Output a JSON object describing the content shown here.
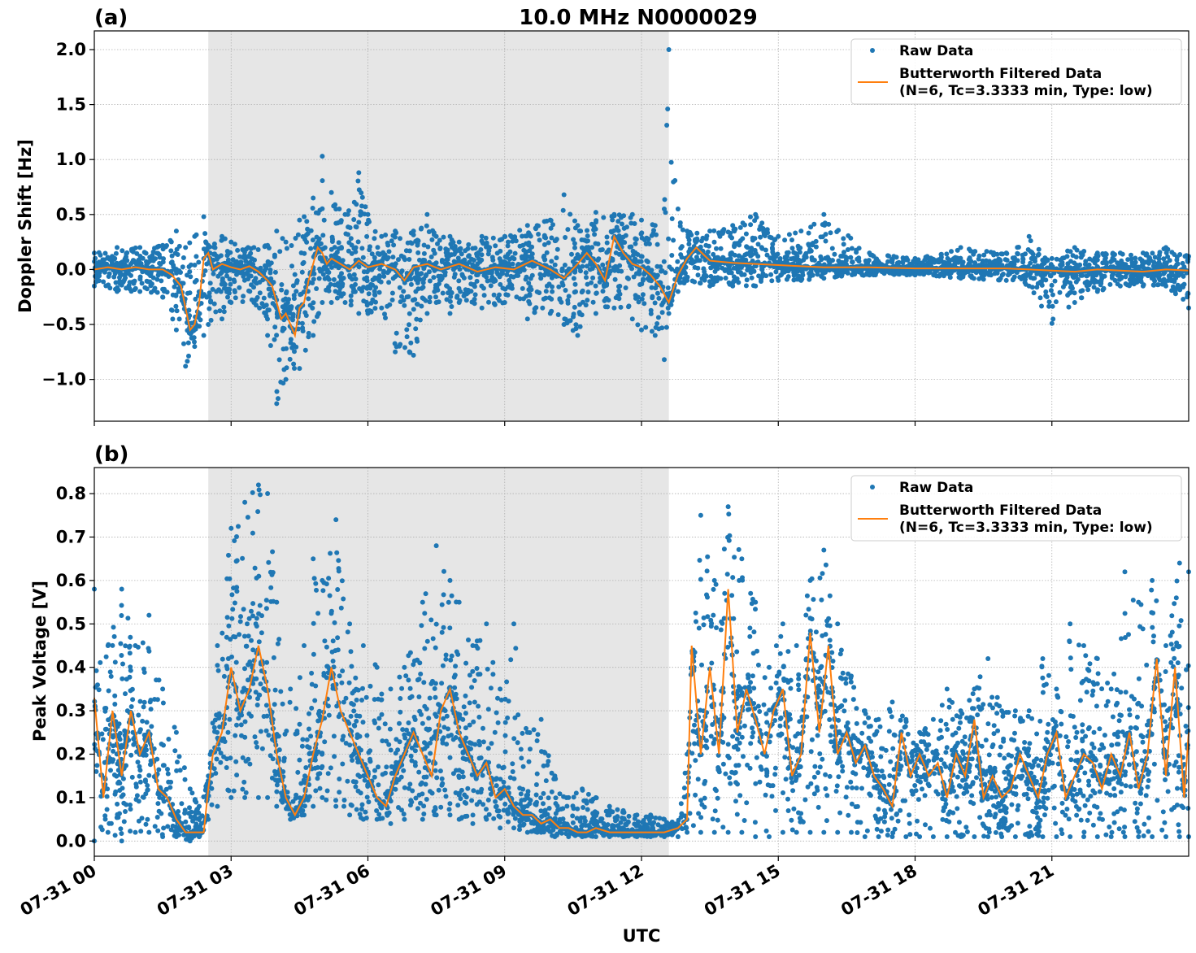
{
  "figure": {
    "title": "10.0 MHz N0000029",
    "xlabel": "UTC",
    "x_ticks": [
      "07-31 00",
      "07-31 03",
      "07-31 06",
      "07-31 09",
      "07-31 12",
      "07-31 15",
      "07-31 18",
      "07-31 21"
    ],
    "legend": {
      "raw": "Raw Data",
      "filtered_line1": "Butterworth Filtered Data",
      "filtered_line2": "(N=6, Tc=3.3333 min, Type: low)"
    },
    "colors": {
      "raw": "#1f77b4",
      "filtered": "#ff7f0e",
      "shade": "#e6e6e6",
      "grid": "#b0b0b0"
    }
  },
  "chart_data": [
    {
      "type": "scatter",
      "panel": "(a)",
      "title": "10.0 MHz N0000029",
      "xlabel": "UTC",
      "ylabel": "Doppler Shift [Hz]",
      "xlim_hours": [
        0,
        24
      ],
      "ylim": [
        -1.38,
        2.17
      ],
      "y_ticks": [
        "2.0",
        "1.5",
        "1.0",
        "0.5",
        "0.0",
        "−0.5",
        "−1.0"
      ],
      "y_tick_values": [
        2.0,
        1.5,
        1.0,
        0.5,
        0.0,
        -0.5,
        -1.0
      ],
      "shaded_interval_hours": [
        2.5,
        12.6
      ],
      "grid": true,
      "legend_position": "upper right",
      "series": [
        {
          "name": "Raw Data",
          "style": "points",
          "x": [
            0,
            0.5,
            1,
            1.5,
            1.8,
            2,
            2.2,
            2.4,
            2.5,
            2.8,
            3,
            3.5,
            3.8,
            4,
            4.2,
            4.5,
            4.8,
            5,
            5.2,
            5.5,
            5.8,
            6,
            6.3,
            6.6,
            7,
            7.3,
            7.5,
            7.8,
            8,
            8.5,
            9,
            9.5,
            10,
            10.3,
            10.6,
            11,
            11.4,
            11.8,
            12,
            12.3,
            12.5,
            12.6,
            12.8,
            13,
            13.5,
            14,
            14.5,
            15,
            15.5,
            16,
            17,
            18,
            19,
            20,
            20.5,
            21,
            21.5,
            22,
            22.5,
            23,
            23.5,
            24
          ],
          "y_upper": [
            0.15,
            0.2,
            0.2,
            0.22,
            0.35,
            0.2,
            0.3,
            0.48,
            0.22,
            0.3,
            0.25,
            0.2,
            0.22,
            0.35,
            0.25,
            0.45,
            0.65,
            1.03,
            0.7,
            0.5,
            0.88,
            0.5,
            0.3,
            0.35,
            0.35,
            0.5,
            0.3,
            0.3,
            0.25,
            0.3,
            0.3,
            0.4,
            0.45,
            0.68,
            0.4,
            0.52,
            0.5,
            0.5,
            0.45,
            0.4,
            0.55,
            2.0,
            0.55,
            0.35,
            0.35,
            0.4,
            0.5,
            0.3,
            0.35,
            0.5,
            0.15,
            0.1,
            0.2,
            0.15,
            0.3,
            0.1,
            0.2,
            0.15,
            0.15,
            0.15,
            0.2,
            0.12
          ],
          "y_lower": [
            -0.15,
            -0.2,
            -0.2,
            -0.25,
            -0.55,
            -0.88,
            -0.7,
            -0.6,
            -0.5,
            -0.45,
            -0.3,
            -0.3,
            -0.6,
            -1.22,
            -1.0,
            -0.9,
            -0.6,
            -0.3,
            -0.3,
            -0.3,
            -0.4,
            -0.4,
            -0.35,
            -0.75,
            -0.78,
            -0.4,
            -0.3,
            -0.4,
            -0.3,
            -0.35,
            -0.3,
            -0.45,
            -0.4,
            -0.5,
            -0.6,
            -0.4,
            -0.35,
            -0.45,
            -0.55,
            -0.6,
            -0.82,
            -0.4,
            -0.2,
            -0.1,
            -0.15,
            -0.15,
            -0.15,
            -0.1,
            -0.1,
            -0.08,
            -0.05,
            -0.05,
            -0.08,
            -0.1,
            -0.15,
            -0.49,
            -0.3,
            -0.2,
            -0.15,
            -0.15,
            -0.15,
            -0.35
          ]
        },
        {
          "name": "Butterworth Filtered Data (N=6, Tc=3.3333 min, Type: low)",
          "style": "line",
          "x": [
            0,
            0.3,
            0.6,
            0.9,
            1.2,
            1.5,
            1.7,
            1.9,
            2.0,
            2.1,
            2.2,
            2.3,
            2.4,
            2.5,
            2.6,
            2.8,
            3.0,
            3.2,
            3.4,
            3.6,
            3.8,
            3.9,
            4.0,
            4.1,
            4.2,
            4.3,
            4.4,
            4.5,
            4.6,
            4.7,
            4.8,
            4.9,
            5.0,
            5.1,
            5.2,
            5.4,
            5.6,
            5.8,
            6.0,
            6.3,
            6.6,
            6.8,
            7.0,
            7.3,
            7.6,
            8.0,
            8.4,
            8.8,
            9.2,
            9.6,
            10.0,
            10.3,
            10.6,
            10.8,
            11.0,
            11.2,
            11.4,
            11.6,
            11.8,
            12.0,
            12.2,
            12.4,
            12.6,
            12.8,
            13.0,
            13.2,
            13.5,
            14,
            14.5,
            15,
            15.5,
            16,
            16.5,
            17,
            18,
            19,
            20,
            20.5,
            21,
            21.5,
            22,
            22.5,
            23,
            23.5,
            24
          ],
          "y": [
            0.0,
            0.02,
            0.0,
            0.02,
            0.0,
            0.0,
            -0.05,
            -0.15,
            -0.35,
            -0.55,
            -0.5,
            -0.3,
            0.1,
            0.15,
            0.0,
            0.05,
            0.02,
            0.0,
            0.03,
            -0.02,
            -0.1,
            -0.15,
            -0.3,
            -0.45,
            -0.4,
            -0.5,
            -0.6,
            -0.35,
            -0.3,
            -0.1,
            0.05,
            0.2,
            0.15,
            0.05,
            0.1,
            0.05,
            0.0,
            0.08,
            0.02,
            0.05,
            0.0,
            -0.1,
            0.02,
            0.05,
            0.0,
            0.05,
            -0.02,
            0.02,
            0.0,
            0.08,
            0.0,
            -0.08,
            0.05,
            0.15,
            0.05,
            -0.1,
            0.3,
            0.15,
            0.05,
            0.02,
            -0.05,
            -0.15,
            -0.3,
            -0.05,
            0.1,
            0.2,
            0.08,
            0.06,
            0.05,
            0.04,
            0.03,
            0.02,
            0.02,
            0.02,
            0.01,
            0.01,
            0.01,
            0.0,
            -0.01,
            -0.02,
            0.0,
            -0.01,
            -0.02,
            0.0,
            -0.01
          ]
        }
      ]
    },
    {
      "type": "scatter",
      "panel": "(b)",
      "xlabel": "UTC",
      "ylabel": "Peak Voltage [V]",
      "xlim_hours": [
        0,
        24
      ],
      "ylim": [
        -0.035,
        0.86
      ],
      "y_ticks": [
        "0.8",
        "0.7",
        "0.6",
        "0.5",
        "0.4",
        "0.3",
        "0.2",
        "0.1",
        "0.0"
      ],
      "y_tick_values": [
        0.8,
        0.7,
        0.6,
        0.5,
        0.4,
        0.3,
        0.2,
        0.1,
        0.0
      ],
      "shaded_interval_hours": [
        2.5,
        12.6
      ],
      "grid": true,
      "legend_position": "upper right",
      "series": [
        {
          "name": "Raw Data",
          "style": "points",
          "x": [
            0,
            0.3,
            0.6,
            0.9,
            1.2,
            1.5,
            1.8,
            2.1,
            2.3,
            2.5,
            2.7,
            3.0,
            3.3,
            3.6,
            3.8,
            4.0,
            4.3,
            4.6,
            4.8,
            5.0,
            5.3,
            5.6,
            5.9,
            6.2,
            6.5,
            6.8,
            7.2,
            7.5,
            7.8,
            8.0,
            8.3,
            8.6,
            8.9,
            9.2,
            9.5,
            9.8,
            10.1,
            10.4,
            10.7,
            11.0,
            11.3,
            11.6,
            11.9,
            12.2,
            12.5,
            12.8,
            13.0,
            13.3,
            13.6,
            13.9,
            14.2,
            14.5,
            14.8,
            15.1,
            15.4,
            15.7,
            16.0,
            16.3,
            16.6,
            16.9,
            17.2,
            17.5,
            17.8,
            18.1,
            18.4,
            18.7,
            19.0,
            19.3,
            19.6,
            19.9,
            20.2,
            20.5,
            20.8,
            21.1,
            21.4,
            21.7,
            22.0,
            22.3,
            22.6,
            22.9,
            23.2,
            23.5,
            23.8,
            24.0
          ],
          "y_upper": [
            0.58,
            0.45,
            0.58,
            0.45,
            0.52,
            0.35,
            0.25,
            0.12,
            0.08,
            0.15,
            0.45,
            0.72,
            0.78,
            0.82,
            0.8,
            0.55,
            0.35,
            0.45,
            0.65,
            0.6,
            0.74,
            0.5,
            0.45,
            0.4,
            0.35,
            0.4,
            0.55,
            0.68,
            0.6,
            0.55,
            0.45,
            0.5,
            0.35,
            0.5,
            0.25,
            0.28,
            0.15,
            0.1,
            0.12,
            0.1,
            0.08,
            0.07,
            0.06,
            0.06,
            0.05,
            0.04,
            0.2,
            0.75,
            0.6,
            0.77,
            0.65,
            0.55,
            0.4,
            0.5,
            0.45,
            0.6,
            0.67,
            0.5,
            0.38,
            0.3,
            0.28,
            0.32,
            0.28,
            0.25,
            0.28,
            0.35,
            0.3,
            0.35,
            0.42,
            0.3,
            0.3,
            0.3,
            0.42,
            0.35,
            0.5,
            0.45,
            0.42,
            0.35,
            0.62,
            0.55,
            0.6,
            0.45,
            0.64,
            0.62
          ],
          "y_lower": [
            0.0,
            0.02,
            0.0,
            0.02,
            0.02,
            0.01,
            0.01,
            0.0,
            0.01,
            0.05,
            0.08,
            0.1,
            0.1,
            0.1,
            0.1,
            0.08,
            0.05,
            0.06,
            0.08,
            0.1,
            0.08,
            0.06,
            0.05,
            0.05,
            0.04,
            0.05,
            0.05,
            0.06,
            0.06,
            0.05,
            0.04,
            0.05,
            0.03,
            0.03,
            0.02,
            0.02,
            0.01,
            0.01,
            0.01,
            0.01,
            0.01,
            0.01,
            0.01,
            0.01,
            0.01,
            0.01,
            0.02,
            0.02,
            0.02,
            0.02,
            0.02,
            0.01,
            0.01,
            0.02,
            0.02,
            0.02,
            0.02,
            0.02,
            0.02,
            0.01,
            0.01,
            0.01,
            0.01,
            0.01,
            0.01,
            0.01,
            0.01,
            0.01,
            0.01,
            0.01,
            0.01,
            0.01,
            0.01,
            0.01,
            0.01,
            0.01,
            0.01,
            0.01,
            0.01,
            0.01,
            0.01,
            0.01,
            0.01,
            0.01
          ]
        },
        {
          "name": "Butterworth Filtered Data (N=6, Tc=3.3333 min, Type: low)",
          "style": "line",
          "x": [
            0,
            0.2,
            0.4,
            0.6,
            0.8,
            1.0,
            1.2,
            1.4,
            1.6,
            1.8,
            2.0,
            2.2,
            2.4,
            2.5,
            2.6,
            2.8,
            3.0,
            3.2,
            3.4,
            3.6,
            3.8,
            4.0,
            4.2,
            4.4,
            4.6,
            4.8,
            5.0,
            5.2,
            5.4,
            5.6,
            5.8,
            6.0,
            6.2,
            6.4,
            6.6,
            6.8,
            7.0,
            7.2,
            7.4,
            7.6,
            7.8,
            8.0,
            8.2,
            8.4,
            8.6,
            8.8,
            9.0,
            9.2,
            9.4,
            9.6,
            9.8,
            10.0,
            10.2,
            10.4,
            10.6,
            10.8,
            11.0,
            11.3,
            11.6,
            11.9,
            12.2,
            12.5,
            12.8,
            13.0,
            13.1,
            13.3,
            13.5,
            13.7,
            13.9,
            14.1,
            14.3,
            14.5,
            14.7,
            14.9,
            15.1,
            15.3,
            15.5,
            15.7,
            15.9,
            16.1,
            16.3,
            16.5,
            16.7,
            16.9,
            17.1,
            17.3,
            17.5,
            17.7,
            17.9,
            18.1,
            18.3,
            18.5,
            18.7,
            18.9,
            19.1,
            19.3,
            19.5,
            19.7,
            19.9,
            20.1,
            20.3,
            20.5,
            20.7,
            20.9,
            21.1,
            21.3,
            21.5,
            21.7,
            21.9,
            22.1,
            22.3,
            22.5,
            22.7,
            22.9,
            23.1,
            23.3,
            23.5,
            23.7,
            23.9,
            24.0
          ],
          "y": [
            0.33,
            0.1,
            0.3,
            0.15,
            0.3,
            0.2,
            0.25,
            0.12,
            0.1,
            0.05,
            0.02,
            0.02,
            0.02,
            0.12,
            0.2,
            0.25,
            0.4,
            0.3,
            0.35,
            0.45,
            0.35,
            0.2,
            0.1,
            0.06,
            0.1,
            0.2,
            0.28,
            0.4,
            0.3,
            0.25,
            0.2,
            0.15,
            0.1,
            0.08,
            0.15,
            0.2,
            0.25,
            0.2,
            0.15,
            0.3,
            0.35,
            0.25,
            0.2,
            0.15,
            0.18,
            0.1,
            0.12,
            0.08,
            0.06,
            0.06,
            0.04,
            0.05,
            0.03,
            0.03,
            0.02,
            0.02,
            0.03,
            0.02,
            0.02,
            0.02,
            0.02,
            0.02,
            0.03,
            0.05,
            0.45,
            0.2,
            0.4,
            0.2,
            0.58,
            0.25,
            0.35,
            0.28,
            0.2,
            0.3,
            0.35,
            0.15,
            0.2,
            0.48,
            0.25,
            0.45,
            0.2,
            0.25,
            0.18,
            0.22,
            0.15,
            0.12,
            0.08,
            0.25,
            0.15,
            0.2,
            0.15,
            0.18,
            0.1,
            0.2,
            0.15,
            0.28,
            0.1,
            0.15,
            0.1,
            0.12,
            0.2,
            0.15,
            0.1,
            0.2,
            0.25,
            0.1,
            0.15,
            0.2,
            0.18,
            0.12,
            0.2,
            0.15,
            0.25,
            0.12,
            0.2,
            0.42,
            0.15,
            0.4,
            0.1,
            0.25
          ]
        }
      ]
    }
  ]
}
